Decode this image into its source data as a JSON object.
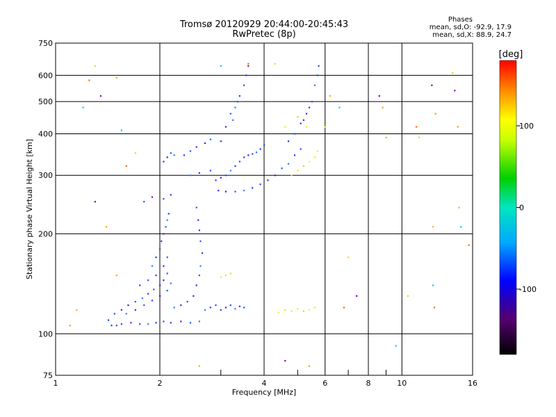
{
  "header": {
    "title_line1": "Tromsø 20120929 20:44:00-20:45:43",
    "title_line2": "RwPretec (8p)",
    "stats_title": "Phases",
    "stats_line1": "mean, sd,O: -92.9, 17.9",
    "stats_line2": "mean, sd,X: 88.9, 24.7"
  },
  "chart_data": {
    "type": "scatter",
    "title": "Tromsø 20120929 20:44:00-20:45:43",
    "subtitle": "RwPretec (8p)",
    "xlabel": "Frequency [MHz]",
    "ylabel": "Stationary phase Virtual Height [km]",
    "x_scale": "log",
    "y_scale": "log",
    "xlim": [
      1,
      16
    ],
    "ylim": [
      75,
      750
    ],
    "xticks": [
      1,
      2,
      4,
      6,
      8,
      10,
      16
    ],
    "yticks": [
      75,
      100,
      200,
      300,
      400,
      500,
      600,
      750
    ],
    "grid": true,
    "colorbar": {
      "label": "[deg]",
      "range": [
        -180,
        180
      ],
      "ticks": [
        -100,
        0,
        100
      ],
      "colormap": "rainbow"
    },
    "series": [
      {
        "points": [
          [
            1.45,
            106
          ],
          [
            1.5,
            106
          ],
          [
            1.55,
            107
          ],
          [
            1.65,
            108
          ],
          [
            1.75,
            107
          ],
          [
            1.85,
            107
          ],
          [
            1.95,
            108
          ],
          [
            2.05,
            109
          ],
          [
            2.15,
            108
          ],
          [
            2.3,
            109
          ],
          [
            2.45,
            108
          ],
          [
            2.6,
            109
          ],
          [
            1.42,
            110
          ],
          [
            1.48,
            115
          ],
          [
            1.55,
            118
          ],
          [
            1.62,
            122
          ],
          [
            1.7,
            125
          ],
          [
            1.78,
            128
          ],
          [
            1.85,
            132
          ],
          [
            1.92,
            136
          ],
          [
            2.0,
            140
          ],
          [
            2.05,
            145
          ],
          [
            2.1,
            152
          ],
          [
            1.6,
            115
          ],
          [
            1.7,
            118
          ],
          [
            1.8,
            122
          ],
          [
            1.9,
            126
          ],
          [
            2.0,
            130
          ],
          [
            2.1,
            135
          ],
          [
            2.15,
            142
          ],
          [
            1.75,
            140
          ],
          [
            1.85,
            145
          ],
          [
            1.95,
            150
          ],
          [
            2.05,
            160
          ],
          [
            2.1,
            170
          ],
          [
            1.9,
            160
          ],
          [
            1.95,
            170
          ],
          [
            2.0,
            180
          ],
          [
            2.02,
            190
          ],
          [
            2.05,
            200
          ],
          [
            2.08,
            210
          ],
          [
            2.1,
            220
          ],
          [
            2.12,
            230
          ],
          [
            2.05,
            255
          ],
          [
            2.15,
            262
          ],
          [
            1.9,
            258
          ],
          [
            1.8,
            250
          ],
          [
            2.2,
            120
          ],
          [
            2.3,
            122
          ],
          [
            2.4,
            125
          ],
          [
            2.5,
            130
          ],
          [
            2.55,
            140
          ],
          [
            2.6,
            150
          ],
          [
            2.62,
            160
          ],
          [
            2.65,
            175
          ],
          [
            2.62,
            190
          ],
          [
            2.6,
            205
          ],
          [
            2.58,
            220
          ],
          [
            2.55,
            240
          ],
          [
            2.7,
            118
          ],
          [
            2.8,
            120
          ],
          [
            2.9,
            122
          ],
          [
            3.0,
            118
          ],
          [
            3.1,
            120
          ],
          [
            3.2,
            122
          ],
          [
            3.3,
            119
          ],
          [
            3.4,
            121
          ],
          [
            3.5,
            120
          ],
          [
            2.05,
            330
          ],
          [
            2.1,
            340
          ],
          [
            2.15,
            350
          ],
          [
            2.2,
            345
          ],
          [
            2.35,
            345
          ],
          [
            2.45,
            355
          ],
          [
            2.55,
            365
          ],
          [
            2.7,
            375
          ],
          [
            2.8,
            385
          ],
          [
            2.45,
            300
          ],
          [
            2.6,
            305
          ],
          [
            2.8,
            310
          ],
          [
            2.9,
            290
          ],
          [
            3.0,
            295
          ],
          [
            3.1,
            300
          ],
          [
            3.2,
            310
          ],
          [
            3.3,
            320
          ],
          [
            3.4,
            330
          ],
          [
            3.5,
            340
          ],
          [
            3.6,
            345
          ],
          [
            3.7,
            348
          ],
          [
            3.8,
            352
          ],
          [
            3.9,
            360
          ],
          [
            4.0,
            370
          ],
          [
            2.95,
            270
          ],
          [
            3.1,
            268
          ],
          [
            3.3,
            268
          ],
          [
            3.5,
            270
          ],
          [
            3.7,
            275
          ],
          [
            3.9,
            282
          ],
          [
            4.1,
            290
          ],
          [
            4.3,
            300
          ],
          [
            4.5,
            315
          ],
          [
            4.7,
            325
          ],
          [
            4.9,
            345
          ],
          [
            5.1,
            360
          ],
          [
            3.0,
            380
          ],
          [
            3.1,
            420
          ],
          [
            3.2,
            460
          ],
          [
            3.3,
            480
          ],
          [
            3.4,
            520
          ],
          [
            3.5,
            560
          ],
          [
            3.55,
            600
          ],
          [
            3.6,
            640
          ],
          [
            3.35,
            500
          ],
          [
            3.25,
            440
          ],
          [
            4.7,
            380
          ],
          [
            4.9,
            400
          ],
          [
            5.1,
            430
          ],
          [
            5.3,
            460
          ],
          [
            5.5,
            500
          ],
          [
            5.6,
            560
          ],
          [
            5.7,
            600
          ],
          [
            5.75,
            640
          ],
          [
            5.4,
            480
          ],
          [
            5.2,
            440
          ]
        ]
      },
      {
        "points": [
          [
            3.0,
            148
          ],
          [
            3.1,
            150
          ],
          [
            3.2,
            152
          ],
          [
            4.4,
            116
          ],
          [
            4.6,
            118
          ],
          [
            4.8,
            117
          ],
          [
            5.0,
            119
          ],
          [
            5.2,
            117
          ],
          [
            5.4,
            118
          ],
          [
            5.6,
            120
          ],
          [
            4.8,
            300
          ],
          [
            5.0,
            310
          ],
          [
            5.2,
            320
          ],
          [
            5.4,
            330
          ],
          [
            5.6,
            340
          ],
          [
            5.7,
            355
          ],
          [
            4.6,
            420
          ],
          [
            5.0,
            450
          ],
          [
            5.3,
            420
          ],
          [
            6.0,
            420
          ]
        ]
      },
      {
        "points": [
          [
            1.1,
            106
          ],
          [
            1.15,
            118
          ],
          [
            1.2,
            480
          ],
          [
            1.25,
            580
          ],
          [
            1.3,
            640
          ],
          [
            1.35,
            520
          ],
          [
            1.4,
            210
          ],
          [
            1.5,
            590
          ],
          [
            1.55,
            410
          ],
          [
            1.6,
            320
          ],
          [
            1.7,
            350
          ],
          [
            1.3,
            250
          ],
          [
            1.5,
            150
          ],
          [
            2.6,
            80
          ],
          [
            3.0,
            640
          ],
          [
            3.6,
            650
          ],
          [
            4.3,
            650
          ],
          [
            4.6,
            83
          ],
          [
            5.4,
            80
          ],
          [
            6.2,
            520
          ],
          [
            6.6,
            480
          ],
          [
            6.8,
            120
          ],
          [
            7.0,
            170
          ],
          [
            8.6,
            520
          ],
          [
            8.8,
            480
          ],
          [
            9.0,
            390
          ],
          [
            9.6,
            92
          ],
          [
            11.0,
            420
          ],
          [
            11.2,
            390
          ],
          [
            12.2,
            560
          ],
          [
            12.5,
            460
          ],
          [
            12.3,
            210
          ],
          [
            12.3,
            140
          ],
          [
            12.4,
            120
          ],
          [
            14.0,
            610
          ],
          [
            14.2,
            540
          ],
          [
            14.5,
            420
          ],
          [
            14.6,
            240
          ],
          [
            14.8,
            210
          ],
          [
            15.6,
            185
          ],
          [
            10.4,
            130
          ],
          [
            7.4,
            130
          ]
        ]
      }
    ]
  },
  "colors": {
    "axis": "#000000",
    "grid": "#000000",
    "background": "#ffffff"
  }
}
